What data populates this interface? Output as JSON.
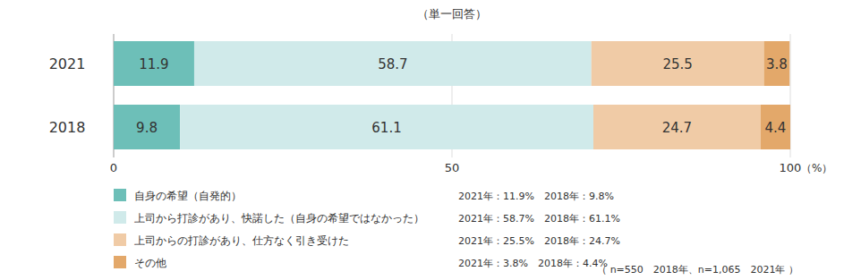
{
  "chart_data": {
    "type": "bar",
    "orientation": "horizontal",
    "stacked": true,
    "data_labels": true,
    "title": "（単一回答）",
    "xlabel": "（%）",
    "categories": [
      "2021",
      "2018"
    ],
    "series": [
      {
        "name": "自身の希望（自発的）",
        "color": "#6dbfb8",
        "values": [
          11.9,
          9.8
        ]
      },
      {
        "name": "上司から打診があり、快諾した（自身の希望ではなかった）",
        "color": "#d0eaea",
        "values": [
          58.7,
          61.1
        ]
      },
      {
        "name": "上司からの打診があり、仕方なく引き受けた",
        "color": "#f0cba6",
        "values": [
          25.5,
          24.7
        ]
      },
      {
        "name": "その他",
        "color": "#e3a86a",
        "values": [
          3.8,
          4.4
        ]
      }
    ],
    "xlim": [
      0,
      100
    ],
    "xticks": [
      0,
      50,
      100
    ],
    "annotations": [
      "2021年：11.9%　2018年：9.8%",
      "2021年：58.7%　2018年：61.1%",
      "2021年：25.5%　2018年：24.7%",
      "2021年：3.8%　2018年：4.4%",
      "（ n=550　2018年、n=1,065　2021年 ）"
    ]
  }
}
